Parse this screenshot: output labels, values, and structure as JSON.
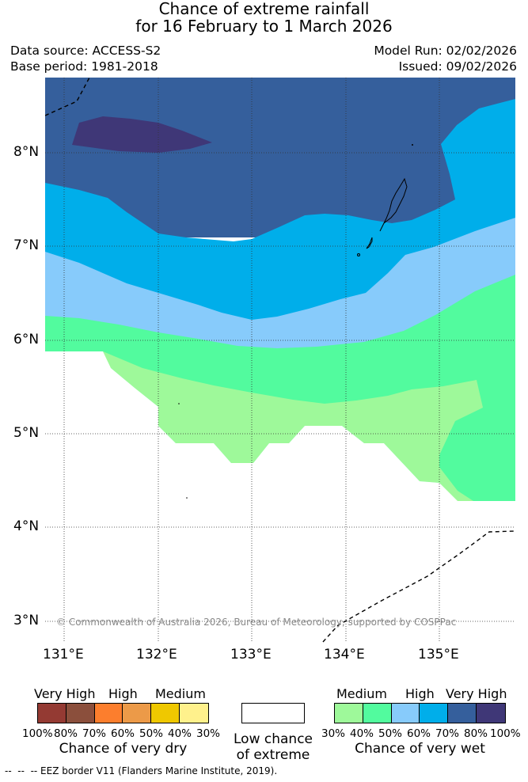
{
  "title": {
    "line1": "Chance of extreme rainfall",
    "line2": "for 16 February to 1 March 2026"
  },
  "meta": {
    "data_source": "Data source: ACCESS-S2",
    "base_period": "Base period: 1981-2018",
    "model_run": "Model Run: 02/02/2026",
    "issued": "Issued: 09/02/2026"
  },
  "map": {
    "latitude_labels": [
      "8°N",
      "7°N",
      "6°N",
      "5°N",
      "4°N",
      "3°N"
    ],
    "longitude_labels": [
      "131°E",
      "132°E",
      "133°E",
      "134°E",
      "135°E"
    ],
    "copyright": "© Commonwealth of Australia 2026, Bureau of Meteorology, supported by COSPPac",
    "colors": {
      "land_none": "#ffffff",
      "wet_30_40": "#9ef99a",
      "wet_40_50": "#52fb9e",
      "wet_50_60": "#87cbfb",
      "wet_60_70": "#00aeea",
      "wet_70_80": "#355f9c",
      "wet_80_100": "#3f3777"
    }
  },
  "legend_dry": {
    "categories": [
      "Very High",
      "High",
      "Medium"
    ],
    "percents": [
      "100%",
      "80%",
      "70%",
      "60%",
      "50%",
      "40%",
      "30%"
    ],
    "colors": [
      "#943a33",
      "#8b4f3c",
      "#fc7e2d",
      "#ec9a48",
      "#efc800",
      "#fff18c"
    ],
    "caption": "Chance of very dry"
  },
  "legend_none": {
    "caption_line1": "Low chance",
    "caption_line2": "of extreme"
  },
  "legend_wet": {
    "categories": [
      "Medium",
      "High",
      "Very High"
    ],
    "percents": [
      "30%",
      "40%",
      "50%",
      "60%",
      "70%",
      "80%",
      "100%"
    ],
    "colors": [
      "#9ef99a",
      "#52fb9e",
      "#87cbfb",
      "#00aeea",
      "#355f9c",
      "#3f3777"
    ],
    "caption": "Chance of very wet"
  },
  "footer": {
    "eez_note": "--  --  -- EEZ border V11 (Flanders Marine Institute, 2019)."
  }
}
